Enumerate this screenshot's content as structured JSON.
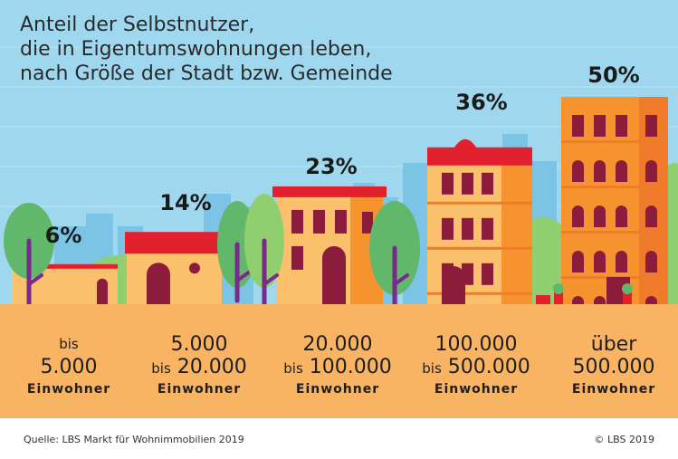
{
  "title_lines": [
    "Anteil der Selbstnutzer,",
    "die in Eigentumswohnungen leben,",
    "nach Größe der Stadt bzw. Gemeinde"
  ],
  "chart_data": {
    "type": "bar",
    "title": "Anteil der Selbstnutzer, die in Eigentumswohnungen leben, nach Größe der Stadt bzw. Gemeinde",
    "categories": [
      "bis 5.000 Einwohner",
      "5.000 bis 20.000 Einwohner",
      "20.000 bis 100.000 Einwohner",
      "100.000 bis 500.000 Einwohner",
      "über 500.000 Einwohner"
    ],
    "values": [
      6,
      14,
      23,
      36,
      50
    ],
    "value_labels": [
      "6%",
      "14%",
      "23%",
      "36%",
      "50%"
    ],
    "unit": "%",
    "ylim": [
      0,
      50
    ],
    "category_lines": [
      {
        "l1": "bis",
        "l2_prefix": "",
        "l2": "5.000",
        "l3": "Einwohner"
      },
      {
        "l1": "5.000",
        "l2_prefix": "bis",
        "l2": "20.000",
        "l3": "Einwohner"
      },
      {
        "l1": "20.000",
        "l2_prefix": "bis",
        "l2": "100.000",
        "l3": "Einwohner"
      },
      {
        "l1": "100.000",
        "l2_prefix": "bis",
        "l2": "500.000",
        "l3": "Einwohner"
      },
      {
        "l1": "über",
        "l2_prefix": "",
        "l2": "500.000",
        "l3": "Einwohner"
      }
    ]
  },
  "footer": {
    "source": "Quelle: LBS Markt für Wohnimmobilien 2019",
    "copyright": "© LBS 2019"
  },
  "colors": {
    "sky": "#9fd8ee",
    "skyline": "#7cc4e6",
    "ground": "#f9b463",
    "roof": "#e3202d",
    "wall_light": "#fbc06b",
    "wall_mid": "#f7932f",
    "wall_dark": "#f07c2b",
    "window": "#8c1c3b",
    "tree": "#62b86a",
    "tree_light": "#8fcf6f",
    "trunk": "#7a2a8a"
  }
}
